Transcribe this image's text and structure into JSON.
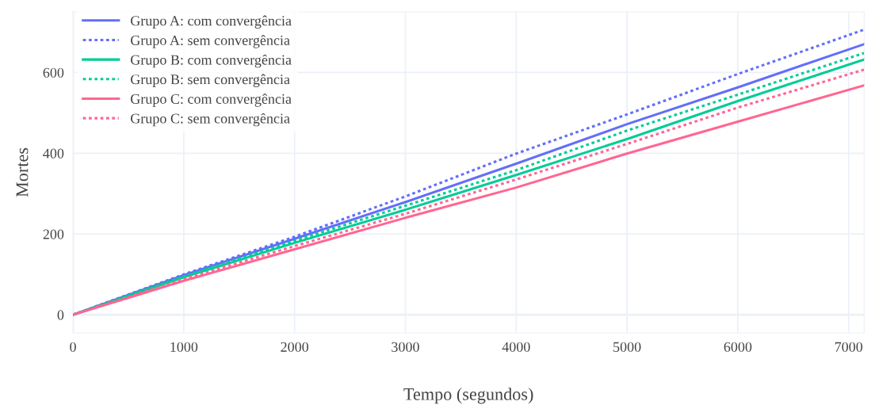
{
  "chart_data": {
    "type": "line",
    "xlabel": "Tempo (segundos)",
    "ylabel": "Mortes",
    "x": [
      0,
      1000,
      2000,
      3000,
      4000,
      5000,
      6000,
      7140
    ],
    "series": [
      {
        "name": "Grupo A: com convergência",
        "color": "#636efa",
        "line_style": "solid",
        "values": [
          0,
          98,
          188,
          279,
          374,
          472,
          563,
          670
        ]
      },
      {
        "name": "Grupo A: sem convergência",
        "color": "#636efa",
        "line_style": "dotted",
        "values": [
          0,
          100,
          193,
          293,
          399,
          496,
          596,
          706
        ]
      },
      {
        "name": "Grupo B: com convergência",
        "color": "#00cc96",
        "line_style": "solid",
        "values": [
          0,
          93,
          178,
          260,
          346,
          435,
          529,
          632
        ]
      },
      {
        "name": "Grupo B: sem convergência",
        "color": "#00cc96",
        "line_style": "dotted",
        "values": [
          0,
          95,
          183,
          270,
          358,
          456,
          545,
          648
        ]
      },
      {
        "name": "Grupo C: com convergência",
        "color": "#ff6692",
        "line_style": "solid",
        "values": [
          0,
          84,
          162,
          240,
          315,
          399,
          478,
          568
        ]
      },
      {
        "name": "Grupo C: sem convergência",
        "color": "#ff6692",
        "line_style": "dotted",
        "values": [
          0,
          88,
          170,
          250,
          335,
          423,
          513,
          607
        ]
      }
    ],
    "xlim": [
      0,
      7140
    ],
    "ylim": [
      -45,
      750
    ],
    "xticks": [
      0,
      1000,
      2000,
      3000,
      4000,
      5000,
      6000,
      7000
    ],
    "yticks": [
      0,
      200,
      400,
      600
    ],
    "grid": true,
    "legend": "top left"
  }
}
